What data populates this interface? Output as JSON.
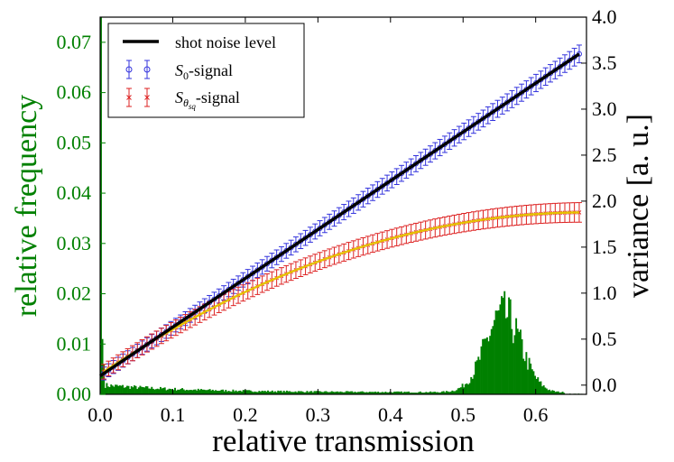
{
  "chart_data": {
    "type": "combined",
    "xlabel": "relative transmission",
    "xlim": [
      0.0,
      0.67
    ],
    "xticks": [
      0.0,
      0.1,
      0.2,
      0.3,
      0.4,
      0.5,
      0.6
    ],
    "xtick_labels": [
      "0.0",
      "0.1",
      "0.2",
      "0.3",
      "0.4",
      "0.5",
      "0.6"
    ],
    "left_axis": {
      "label": "relative frequency",
      "color": "#008000",
      "ylim": [
        0.0,
        0.075
      ],
      "ticks": [
        0.0,
        0.01,
        0.02,
        0.03,
        0.04,
        0.05,
        0.06,
        0.07
      ],
      "tick_labels": [
        "0.00",
        "0.01",
        "0.02",
        "0.03",
        "0.04",
        "0.05",
        "0.06",
        "0.07"
      ]
    },
    "right_axis": {
      "label": "variance [a. u.]",
      "color": "#000000",
      "ylim": [
        -0.1,
        4.0
      ],
      "ticks": [
        0.0,
        0.5,
        1.0,
        1.5,
        2.0,
        2.5,
        3.0,
        3.5,
        4.0
      ],
      "tick_labels": [
        "0.0",
        "0.5",
        "1.0",
        "1.5",
        "2.0",
        "2.5",
        "3.0",
        "3.5",
        "4.0"
      ]
    },
    "legend": {
      "position": "top-left",
      "entries": [
        {
          "label": "shot noise level",
          "marker": "line",
          "color": "#000000"
        },
        {
          "label_main": "S",
          "label_sub": "0",
          "label_sub2": "",
          "label_suffix": "-signal",
          "marker": "circle",
          "color": "#3333dd"
        },
        {
          "label_main": "S",
          "label_sub": "θ",
          "label_sub2": "sq",
          "label_suffix": "-signal",
          "marker": "x",
          "color": "#dd2222"
        }
      ]
    },
    "series": [
      {
        "name": "shot noise level",
        "axis": "right",
        "kind": "line",
        "color": "#000000",
        "x": [
          0.0,
          0.66
        ],
        "y": [
          0.1,
          3.6
        ]
      },
      {
        "name": "S0-signal",
        "axis": "right",
        "kind": "errorbar",
        "color": "#3333dd",
        "marker": "circle",
        "x_start": 0.005,
        "x_end": 0.66,
        "n_points": 100,
        "y_intercept": 0.1,
        "y_slope": 5.303,
        "y_error": 0.07
      },
      {
        "name": "Sθsq-signal",
        "axis": "right",
        "kind": "errorbar",
        "color": "#dd2222",
        "marker": "x",
        "x_start": 0.005,
        "x_end": 0.66,
        "n_points": 100,
        "y_intercept": 0.12,
        "y_slope": 5.25,
        "y_quad": -3.92,
        "y_error": 0.08
      },
      {
        "name": "squeezed fit",
        "axis": "right",
        "kind": "fit-line",
        "color": "#e6c200",
        "x_start": 0.005,
        "x_end": 0.66,
        "y_intercept": 0.12,
        "y_slope": 5.25,
        "y_quad": -3.92
      },
      {
        "name": "transmission histogram",
        "axis": "left",
        "kind": "histogram",
        "color": "#008000",
        "bin_width": 0.002,
        "features": {
          "spike_at_zero": 0.075,
          "second_bin": 0.011,
          "baseline_low_t": 0.0015,
          "peak_center": 0.555,
          "peak_height": 0.0155,
          "peak_width": 0.035
        }
      }
    ]
  }
}
